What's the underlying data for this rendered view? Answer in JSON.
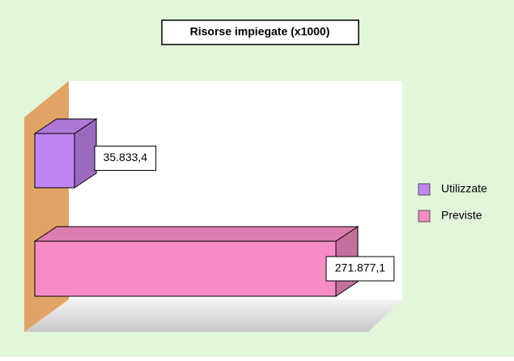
{
  "chart_data": {
    "type": "bar3d",
    "title": "Risorse impiegate (x1000)",
    "categories": [
      null
    ],
    "series": [
      {
        "name": "Utilizzate",
        "color": "#c084f0",
        "values": [
          35833.4
        ],
        "value_labels": [
          "35.833,4"
        ]
      },
      {
        "name": "Previste",
        "color": "#f58cc4",
        "values": [
          271877.1
        ],
        "value_labels": [
          "271.877,1"
        ]
      }
    ],
    "legend": "right"
  }
}
